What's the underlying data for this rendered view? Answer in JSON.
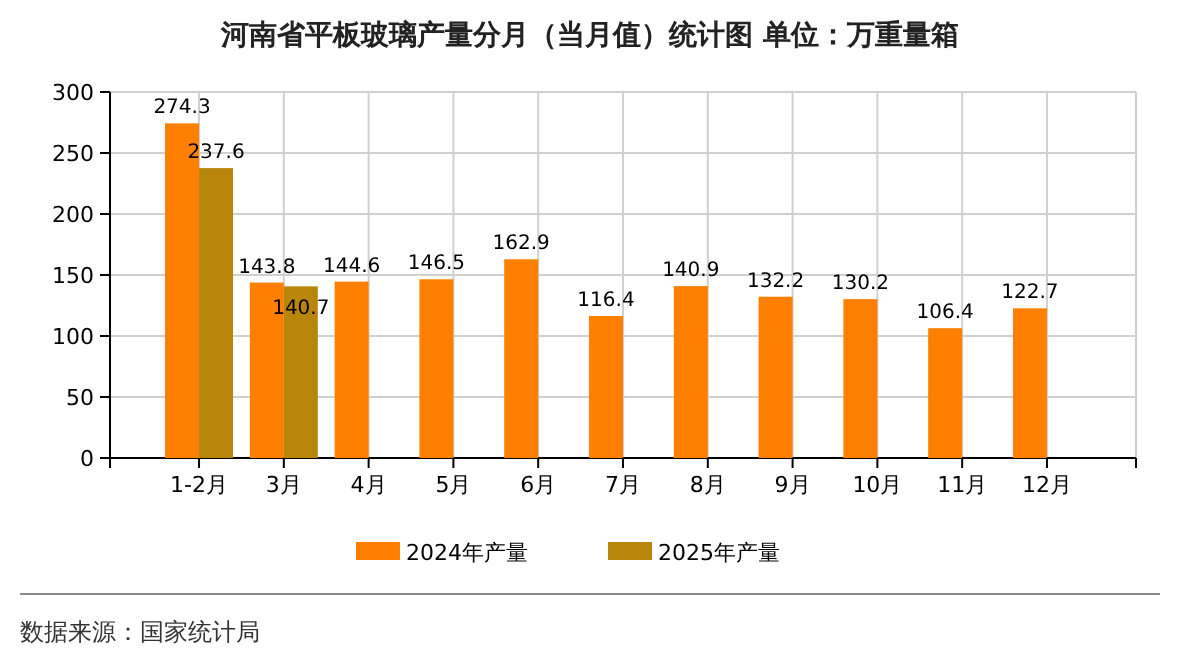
{
  "chart_data": {
    "type": "bar",
    "title": "河南省平板玻璃产量分月（当月值）统计图  单位：万重量箱",
    "categories": [
      "1-2月",
      "3月",
      "4月",
      "5月",
      "6月",
      "7月",
      "8月",
      "9月",
      "10月",
      "11月",
      "12月"
    ],
    "series": [
      {
        "name": "2024年产量",
        "color": "#ff8000",
        "values": [
          274.3,
          143.8,
          144.6,
          146.5,
          162.9,
          116.4,
          140.9,
          132.2,
          130.2,
          106.4,
          122.7
        ]
      },
      {
        "name": "2025年产量",
        "color": "#b8860b",
        "values": [
          237.6,
          140.7,
          null,
          null,
          null,
          null,
          null,
          null,
          null,
          null,
          null
        ]
      }
    ],
    "ylim": [
      0,
      300
    ],
    "yticks": [
      0,
      50,
      100,
      150,
      200,
      250,
      300
    ],
    "grid": true,
    "legend": "bottom",
    "data_labels": true,
    "annotations": [
      "数据来源：国家统计局"
    ]
  }
}
